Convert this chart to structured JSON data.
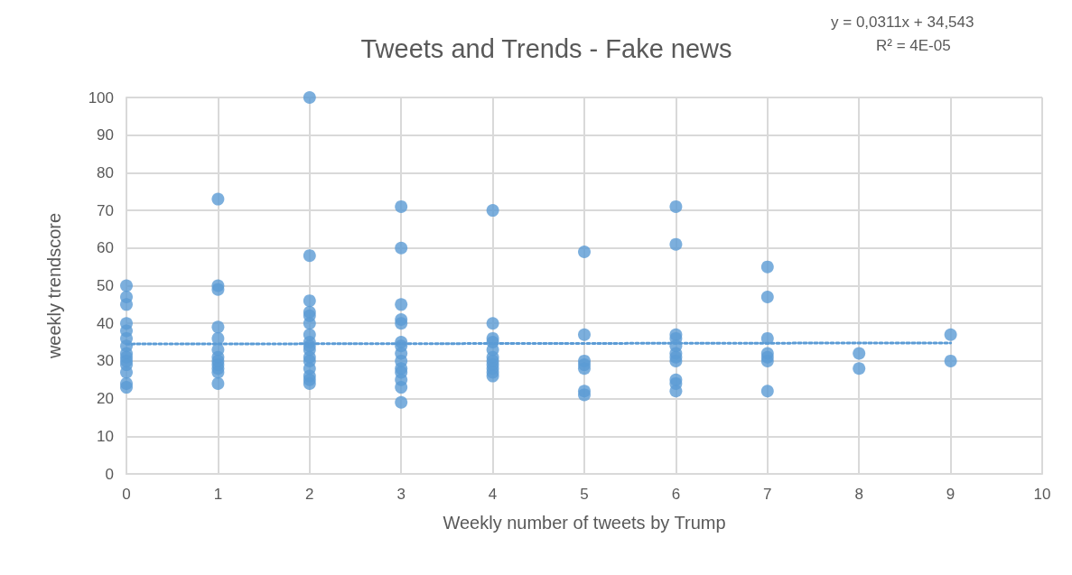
{
  "chart_data": {
    "type": "scatter",
    "title": "Tweets and Trends - Fake news",
    "xlabel": "Weekly number of tweets by Trump",
    "ylabel": "weekly trendscore",
    "annotations": [
      "y = 0,0311x + 34,543",
      "R² = 4E-05"
    ],
    "series": [
      {
        "color": "#5b9bd5",
        "marker": "circle",
        "x": [
          0,
          0,
          0,
          0,
          0,
          0,
          0,
          0,
          0,
          0,
          0,
          0,
          0,
          0,
          1,
          1,
          1,
          1,
          1,
          1,
          1,
          1,
          1,
          1,
          1,
          1,
          2,
          2,
          2,
          2,
          2,
          2,
          2,
          2,
          2,
          2,
          2,
          2,
          2,
          2,
          2,
          2,
          3,
          3,
          3,
          3,
          3,
          3,
          3,
          3,
          3,
          3,
          3,
          3,
          3,
          3,
          4,
          4,
          4,
          4,
          4,
          4,
          4,
          4,
          4,
          4,
          4,
          5,
          5,
          5,
          5,
          5,
          5,
          5,
          6,
          6,
          6,
          6,
          6,
          6,
          6,
          6,
          6,
          6,
          6,
          7,
          7,
          7,
          7,
          7,
          7,
          7,
          8,
          8,
          9,
          9
        ],
        "values": [
          50,
          47,
          45,
          40,
          38,
          36,
          34,
          32,
          31,
          30,
          29,
          27,
          24,
          23,
          73,
          50,
          49,
          39,
          36,
          33,
          31,
          30,
          29,
          28,
          27,
          24,
          100,
          58,
          46,
          43,
          42,
          40,
          37,
          35,
          34,
          33,
          31,
          30,
          28,
          26,
          25,
          24,
          71,
          60,
          45,
          41,
          40,
          35,
          34,
          32,
          30,
          28,
          27,
          25,
          23,
          19,
          70,
          40,
          36,
          35,
          33,
          31,
          30,
          29,
          28,
          27,
          26,
          59,
          37,
          30,
          29,
          28,
          22,
          21,
          71,
          61,
          37,
          36,
          34,
          32,
          31,
          30,
          25,
          24,
          22,
          55,
          47,
          36,
          32,
          31,
          30,
          22,
          32,
          28,
          37,
          30
        ]
      },
      {
        "type": "line",
        "color": "#5b9bd5",
        "marker": "none",
        "line_style": "dotted",
        "x": [
          0,
          9
        ],
        "values": [
          34.5,
          34.8
        ]
      }
    ],
    "xlim": [
      0,
      10
    ],
    "xticks": [
      0,
      1,
      2,
      3,
      4,
      5,
      6,
      7,
      8,
      9,
      10
    ],
    "ylim": [
      0,
      100
    ],
    "yticks": [
      0,
      10,
      20,
      30,
      40,
      50,
      60,
      70,
      80,
      90,
      100
    ],
    "grid": true
  }
}
